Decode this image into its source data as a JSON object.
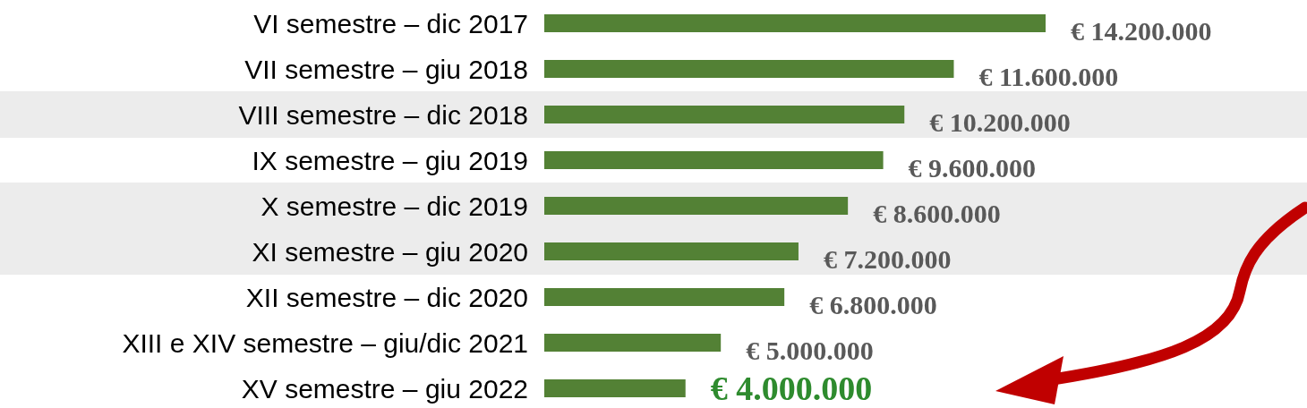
{
  "chart_data": {
    "type": "bar",
    "orientation": "horizontal",
    "relative": false,
    "categories": [
      "VI semestre – dic 2017",
      "VII semestre – giu 2018",
      "VIII semestre – dic 2018",
      "IX semestre – giu 2019",
      "X semestre – dic 2019",
      "XI semestre – giu 2020",
      "XII semestre – dic 2020",
      "XIII e XIV semestre – giu/dic 2021",
      "XV semestre – giu 2022"
    ],
    "values": [
      14200000,
      11600000,
      10200000,
      9600000,
      8600000,
      7200000,
      6800000,
      5000000,
      4000000
    ],
    "value_labels": [
      "€ 14.200.000",
      "€ 11.600.000",
      "€ 10.200.000",
      "€ 9.600.000",
      "€ 8.600.000",
      "€ 7.200.000",
      "€ 6.800.000",
      "€ 5.000.000",
      "€ 4.000.000"
    ],
    "color": "#538135",
    "bands": [
      {
        "axis": "y",
        "from": "VIII semestre – dic 2018",
        "to": "VIII semestre – dic 2018",
        "color": "#ececec"
      },
      {
        "axis": "y",
        "from": "X semestre – dic 2019",
        "to": "XI semestre – giu 2020",
        "color": "#ececec"
      }
    ]
  }
}
